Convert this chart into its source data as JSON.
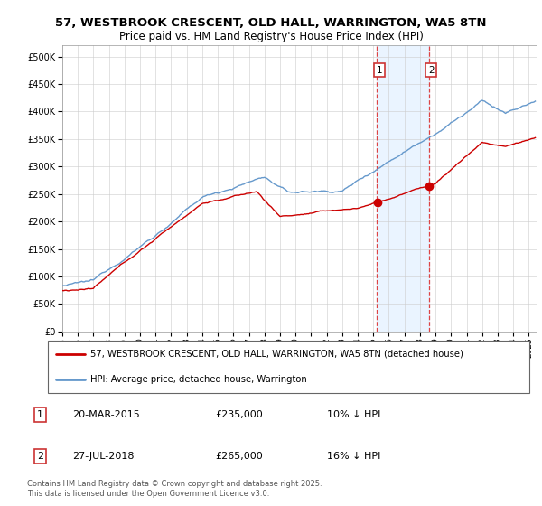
{
  "title_line1": "57, WESTBROOK CRESCENT, OLD HALL, WARRINGTON, WA5 8TN",
  "title_line2": "Price paid vs. HM Land Registry's House Price Index (HPI)",
  "legend_label_red": "57, WESTBROOK CRESCENT, OLD HALL, WARRINGTON, WA5 8TN (detached house)",
  "legend_label_blue": "HPI: Average price, detached house, Warrington",
  "transaction1_date": "20-MAR-2015",
  "transaction1_price": "£235,000",
  "transaction1_hpi": "10% ↓ HPI",
  "transaction2_date": "27-JUL-2018",
  "transaction2_price": "£265,000",
  "transaction2_hpi": "16% ↓ HPI",
  "footer": "Contains HM Land Registry data © Crown copyright and database right 2025.\nThis data is licensed under the Open Government Licence v3.0.",
  "transaction1_x": 2015.22,
  "transaction2_x": 2018.57,
  "sale1_price": 235000,
  "sale2_price": 265000,
  "ylim_max": 520000,
  "color_red": "#cc0000",
  "color_blue": "#6699cc",
  "color_shading": "#ddeeff",
  "color_vline": "#dd4444"
}
